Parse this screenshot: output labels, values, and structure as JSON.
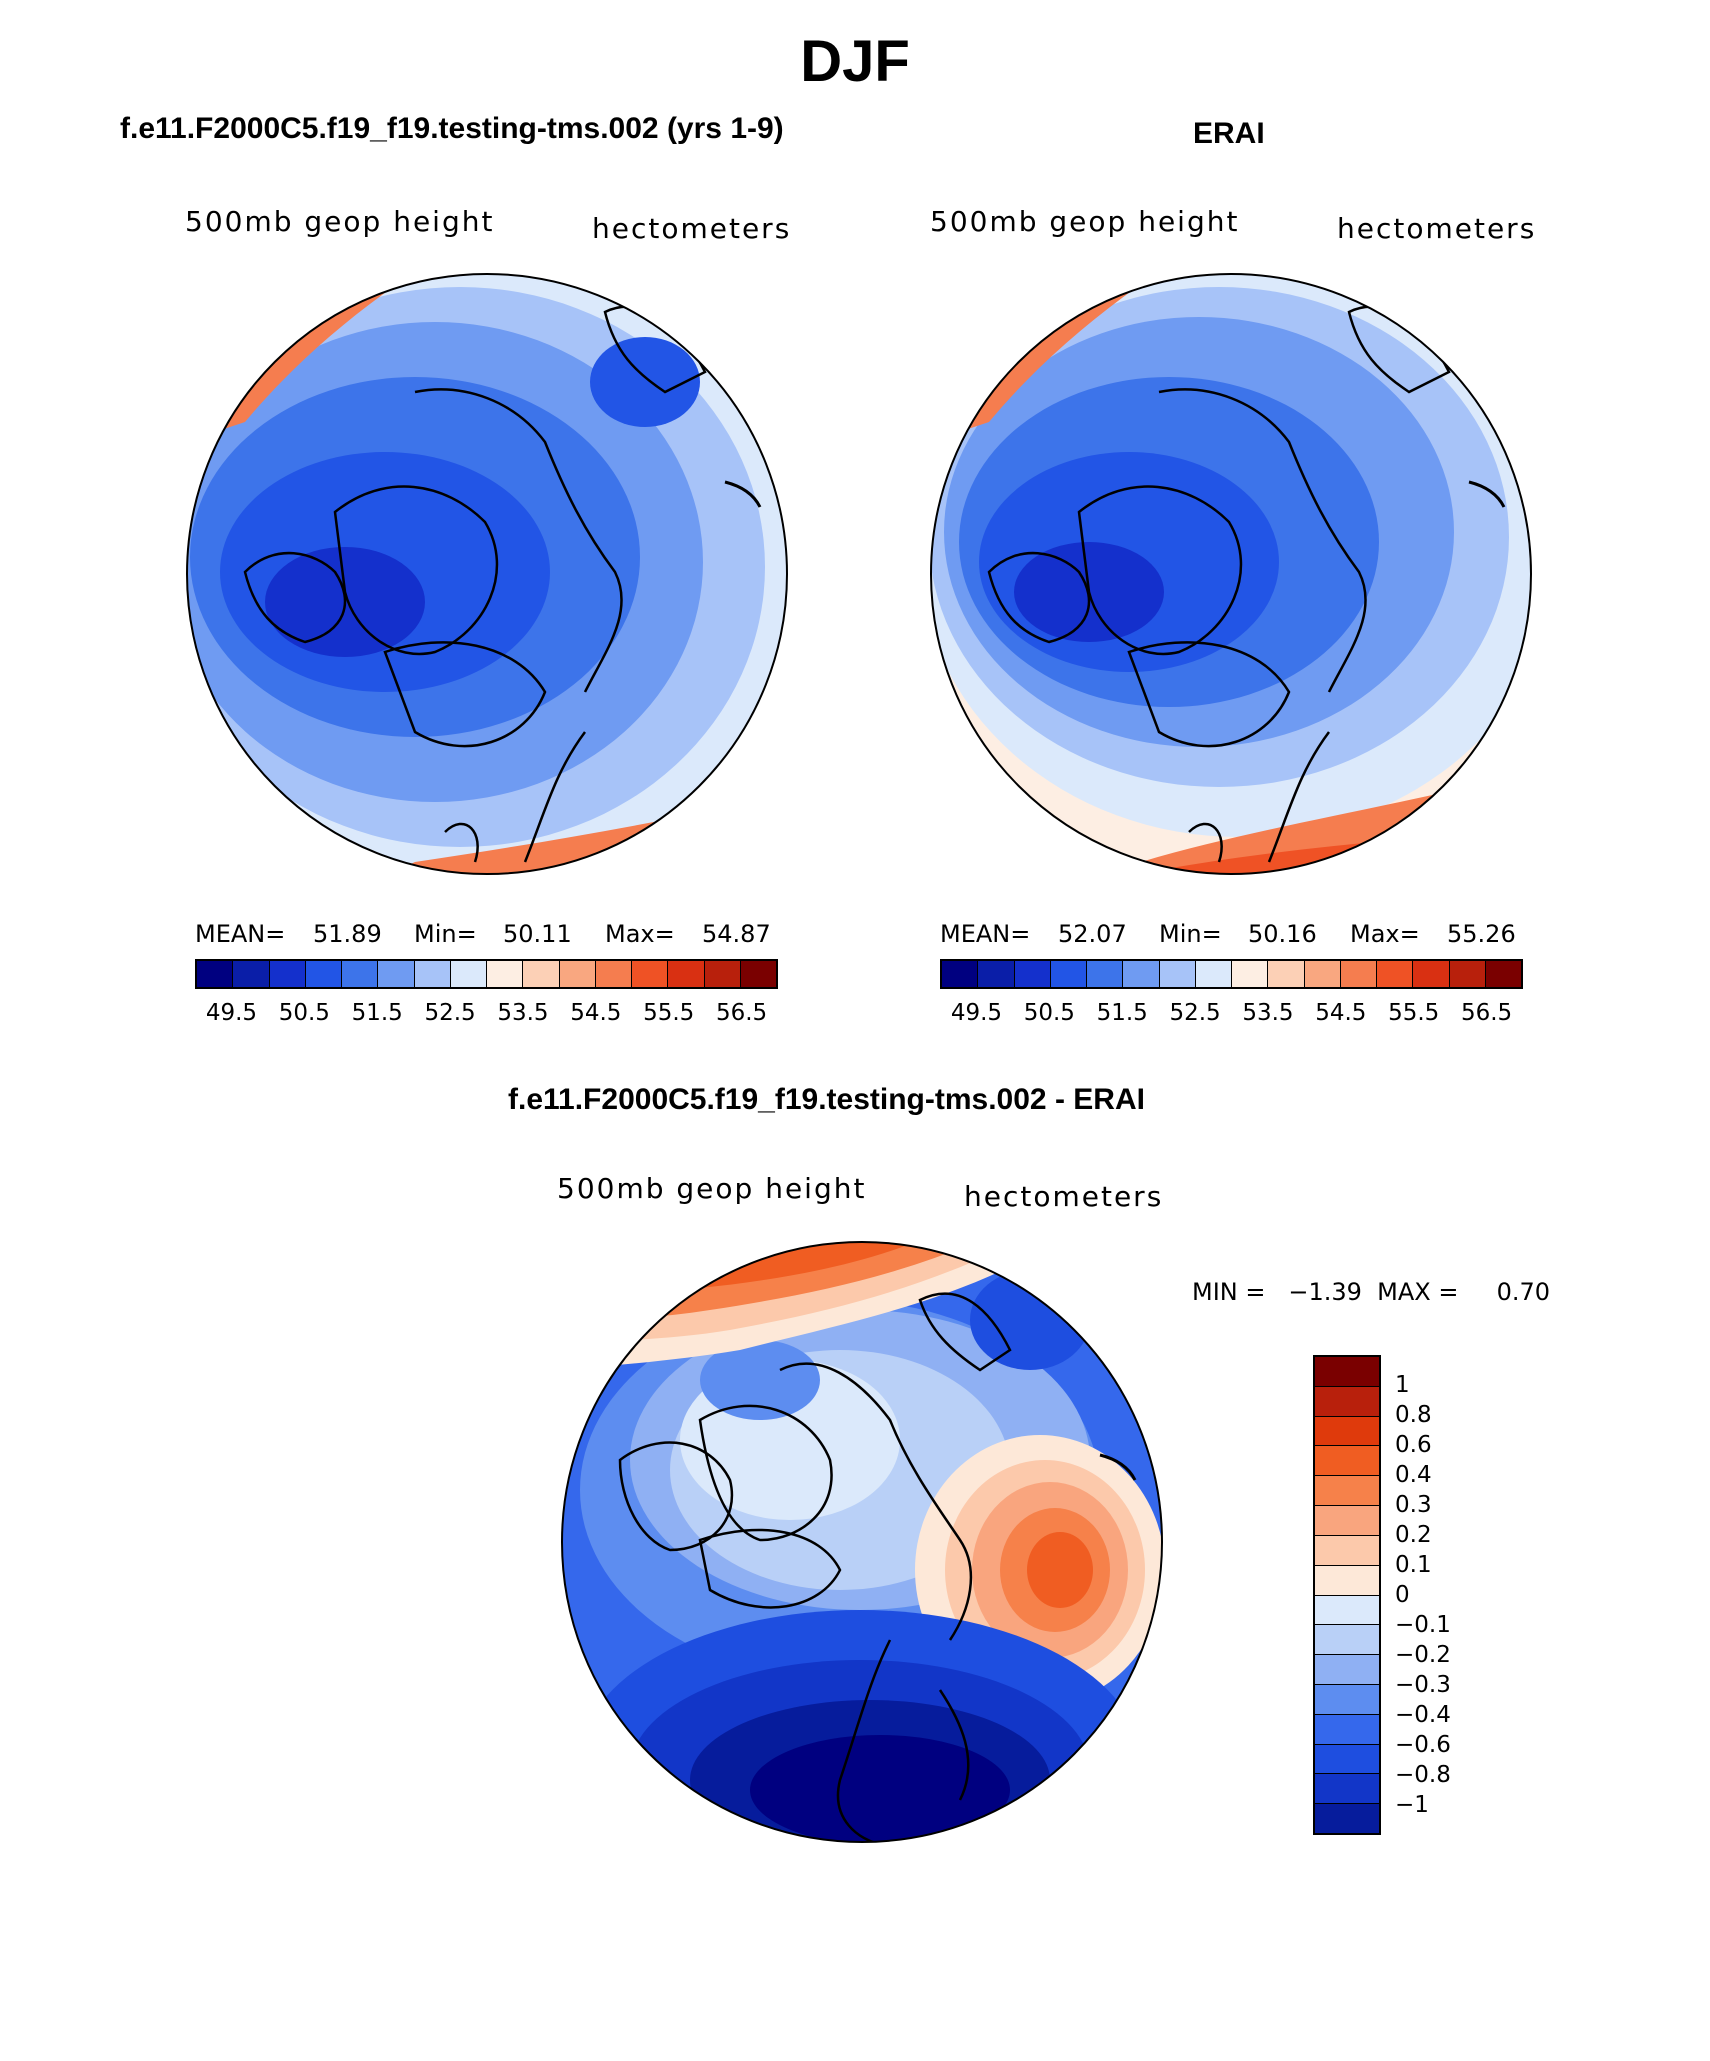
{
  "figure_title": "DJF",
  "panels": {
    "model": {
      "case": "f.e11.F2000C5.f19_f19.testing-tms.002 (yrs 1-9)",
      "left_label": "500mb geop height",
      "right_label": "hectometers",
      "mean_label": "MEAN=",
      "mean_value": "51.89",
      "min_label": "Min=",
      "min_value": "50.11",
      "max_label": "Max=",
      "max_value": "54.87"
    },
    "obs": {
      "case": "ERAI",
      "left_label": "500mb geop height",
      "right_label": "hectometers",
      "mean_label": "MEAN=",
      "mean_value": "52.07",
      "min_label": "Min=",
      "min_value": "50.16",
      "max_label": "Max=",
      "max_value": "55.26"
    },
    "diff": {
      "case": "f.e11.F2000C5.f19_f19.testing-tms.002 - ERAI",
      "left_label": "500mb geop height",
      "right_label": "hectometers",
      "minmax_text": "MIN =   −1.39  MAX =     0.70"
    }
  },
  "colorbar_abs": {
    "colors": [
      "#000080",
      "#0a1ea8",
      "#1430cc",
      "#2255e6",
      "#3d74ea",
      "#6f9bf2",
      "#a7c3f8",
      "#dbe9fb",
      "#fdeee3",
      "#fcd0b6",
      "#f9a780",
      "#f57d4f",
      "#ef5225",
      "#d93012",
      "#b8200c",
      "#7a0000"
    ],
    "tick_labels": [
      "49.5",
      "50.5",
      "51.5",
      "52.5",
      "53.5",
      "54.5",
      "55.5",
      "56.5"
    ]
  },
  "colorbar_diff": {
    "colors": [
      "#7a0000",
      "#b8200c",
      "#df3a0c",
      "#f05d22",
      "#f6814a",
      "#f9a57e",
      "#fcc9ab",
      "#fde8d8",
      "#dbe9fb",
      "#b9d0f7",
      "#8fb0f3",
      "#5d8df0",
      "#3568ec",
      "#1e4ee0",
      "#1236c8",
      "#061c9c"
    ],
    "tick_labels": [
      "1",
      "0.8",
      "0.6",
      "0.4",
      "0.3",
      "0.2",
      "0.1",
      "0",
      "−0.1",
      "−0.2",
      "−0.3",
      "−0.4",
      "−0.6",
      "−0.8",
      "−1"
    ]
  }
}
